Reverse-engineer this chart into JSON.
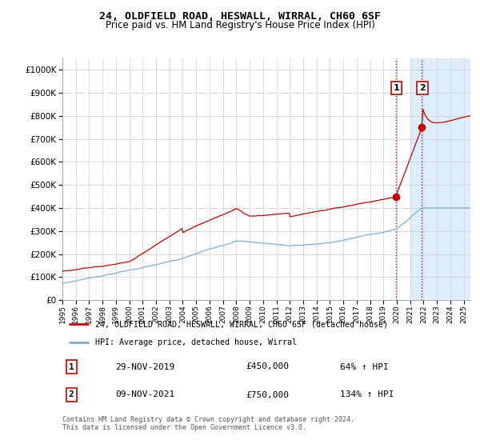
{
  "title": "24, OLDFIELD ROAD, HESWALL, WIRRAL, CH60 6SF",
  "subtitle": "Price paid vs. HM Land Registry's House Price Index (HPI)",
  "legend_line1": "24, OLDFIELD ROAD, HESWALL, WIRRAL, CH60 6SF (detached house)",
  "legend_line2": "HPI: Average price, detached house, Wirral",
  "annotation1_date": "29-NOV-2019",
  "annotation1_price": "£450,000",
  "annotation1_hpi": "64% ↑ HPI",
  "annotation2_date": "09-NOV-2021",
  "annotation2_price": "£750,000",
  "annotation2_hpi": "134% ↑ HPI",
  "footer": "Contains HM Land Registry data © Crown copyright and database right 2024.\nThis data is licensed under the Open Government Licence v3.0.",
  "red_color": "#cc0000",
  "blue_color": "#7aadda",
  "background_color": "#ffffff",
  "grid_color": "#cccccc",
  "highlight_color": "#ddeeff",
  "ylim": [
    0,
    1050000
  ],
  "xlim_start": 1995.0,
  "xlim_end": 2025.5,
  "sale1_x": 2019.91,
  "sale1_y": 450000,
  "sale2_x": 2021.86,
  "sale2_y": 750000,
  "dashed_x1": 2019.91,
  "dashed_x2": 2021.86,
  "highlight_x_start": 2021.0,
  "highlight_x_end": 2025.5
}
